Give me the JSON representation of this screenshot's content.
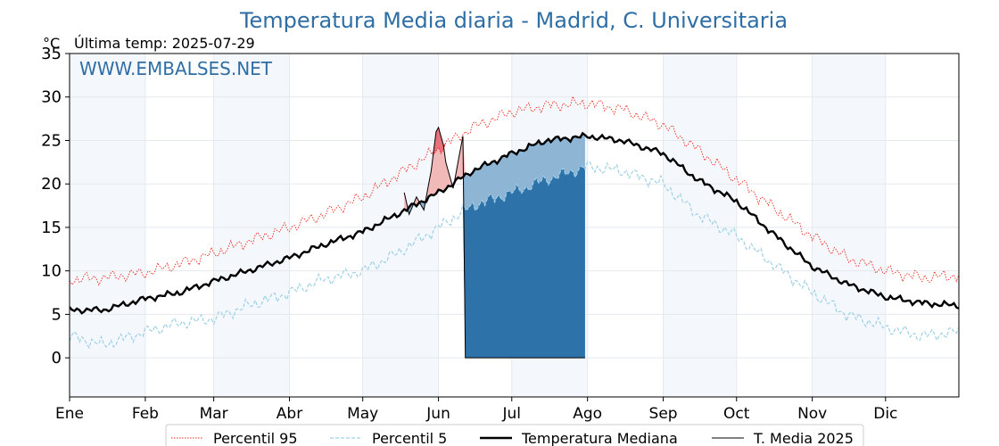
{
  "chart_data": {
    "type": "line",
    "title": "Temperatura Media diaria - Madrid, C. Universitaria",
    "unit_label": "°C",
    "last_temp_label": "Última temp: 2025-07-29",
    "watermark": "WWW.EMBALSES.NET",
    "xlim": [
      1,
      365
    ],
    "ylim": [
      -4.5,
      35
    ],
    "yticks": [
      0,
      5,
      10,
      15,
      20,
      25,
      30,
      35
    ],
    "month_labels": [
      "Ene",
      "Feb",
      "Mar",
      "Abr",
      "May",
      "Jun",
      "Jul",
      "Ago",
      "Sep",
      "Oct",
      "Nov",
      "Dic"
    ],
    "month_start_days": [
      1,
      32,
      60,
      91,
      121,
      152,
      182,
      213,
      244,
      274,
      305,
      335
    ],
    "grid": true,
    "legend_position": "bottom",
    "series": [
      {
        "name": "Percentil 95",
        "color": "#e8271d",
        "style": "dotted",
        "x": [
          1,
          15,
          32,
          46,
          60,
          74,
          91,
          105,
          121,
          135,
          152,
          166,
          182,
          196,
          213,
          227,
          244,
          258,
          274,
          288,
          305,
          319,
          335,
          350,
          365
        ],
        "y": [
          9.0,
          9.2,
          9.8,
          10.8,
          12.0,
          13.4,
          15.0,
          16.5,
          18.5,
          21.0,
          24.0,
          26.5,
          28.3,
          29.0,
          29.3,
          28.6,
          26.8,
          24.0,
          20.5,
          17.5,
          14.0,
          11.5,
          10.0,
          9.2,
          9.5
        ]
      },
      {
        "name": "Percentil 5",
        "color": "#9ed0e6",
        "style": "dashed",
        "x": [
          1,
          15,
          32,
          46,
          60,
          74,
          91,
          105,
          121,
          135,
          152,
          166,
          182,
          196,
          213,
          227,
          244,
          258,
          274,
          288,
          305,
          319,
          335,
          350,
          365
        ],
        "y": [
          2.5,
          1.5,
          3.0,
          4.0,
          4.5,
          6.0,
          7.5,
          9.0,
          10.0,
          12.0,
          15.0,
          17.5,
          19.0,
          20.5,
          22.0,
          21.5,
          20.0,
          16.5,
          14.0,
          11.0,
          7.5,
          5.0,
          3.5,
          2.5,
          3.0
        ]
      },
      {
        "name": "Temperatura Mediana",
        "color": "#000000",
        "style": "solid-thick",
        "x": [
          1,
          15,
          32,
          46,
          60,
          74,
          91,
          105,
          121,
          135,
          152,
          166,
          182,
          196,
          213,
          227,
          244,
          258,
          274,
          288,
          305,
          319,
          335,
          350,
          365
        ],
        "y": [
          5.5,
          5.5,
          6.8,
          7.5,
          8.8,
          10.0,
          11.5,
          13.0,
          14.5,
          16.5,
          19.0,
          21.5,
          23.5,
          25.0,
          25.5,
          25.0,
          23.5,
          20.5,
          18.0,
          14.5,
          10.5,
          8.5,
          7.0,
          6.3,
          6.0
        ]
      },
      {
        "name": "T. Media 2025",
        "color": "#000000",
        "style": "solid-thin",
        "x": [
          138,
          140,
          143,
          146,
          149,
          151,
          152,
          154,
          155,
          158,
          160,
          162,
          163,
          165,
          170,
          175,
          180,
          185,
          190,
          195,
          200,
          205,
          210,
          212
        ],
        "y": [
          19.0,
          16.5,
          18.5,
          17.0,
          21.5,
          26.0,
          26.5,
          24.5,
          22.5,
          19.5,
          22.5,
          25.5,
          0.0,
          0.0,
          0.0,
          0.0,
          0.0,
          0.0,
          0.0,
          0.0,
          0.0,
          0.0,
          0.0,
          0.0
        ]
      }
    ],
    "fill_colors": {
      "above_p95": "#e8707a",
      "above_median": "#f2b9b9",
      "below_median": "#8eb5d4",
      "below_p5": "#2e72aa"
    }
  }
}
